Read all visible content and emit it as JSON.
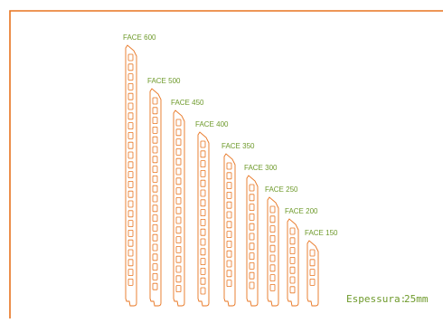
{
  "colors": {
    "frame": "#E8731E",
    "profile": "#E8731E",
    "label": "#6E9A2B",
    "thickness_text": "#6E9A2B"
  },
  "profiles": [
    {
      "label": "FACE 600",
      "height_mm": 600
    },
    {
      "label": "FACE 500",
      "height_mm": 500
    },
    {
      "label": "FACE 450",
      "height_mm": 450
    },
    {
      "label": "FACE 400",
      "height_mm": 400
    },
    {
      "label": "FACE 350",
      "height_mm": 350
    },
    {
      "label": "FACE 300",
      "height_mm": 300
    },
    {
      "label": "FACE 250",
      "height_mm": 250
    },
    {
      "label": "FACE 200",
      "height_mm": 200
    },
    {
      "label": "FACE 150",
      "height_mm": 150
    }
  ],
  "thickness": {
    "label": "Espessura:",
    "value": "25mm"
  }
}
